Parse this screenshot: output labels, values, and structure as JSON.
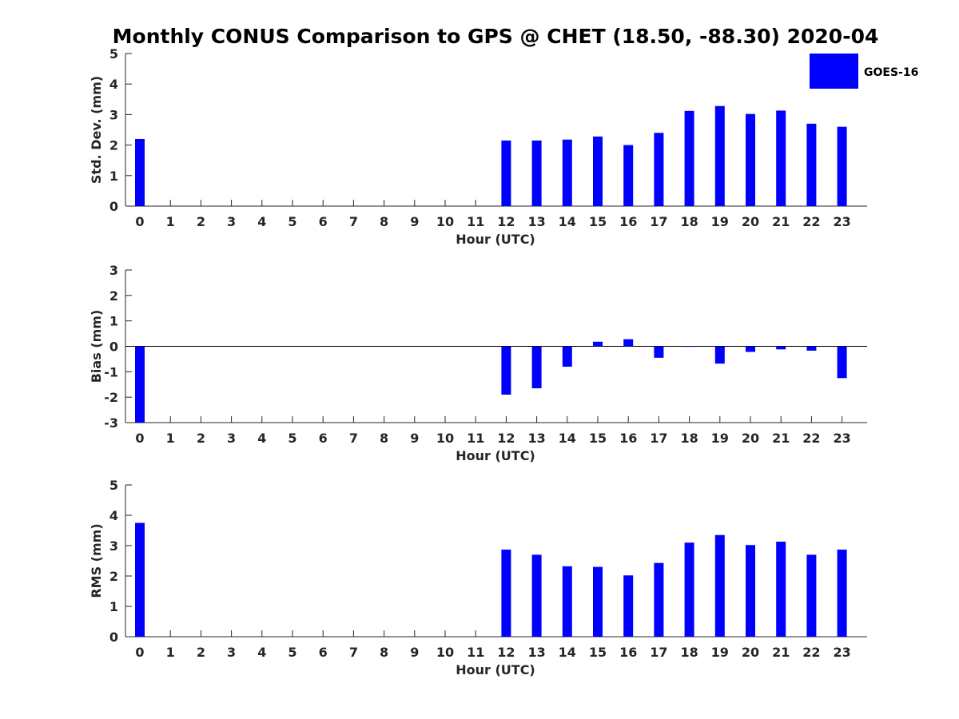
{
  "chart_data": {
    "title": "Monthly CONUS Comparison to GPS @ CHET (18.50, -88.30) 2020-04",
    "legend": {
      "entries": [
        "GOES-16"
      ],
      "placement": "top-right",
      "color": "#0000ff"
    },
    "bar_color": "#0000ff",
    "grid": false,
    "panels": [
      {
        "type": "bar",
        "ylabel": "Std. Dev. (mm)",
        "xlabel": "Hour (UTC)",
        "ylim": [
          0,
          5
        ],
        "yticks": [
          "0",
          "1",
          "2",
          "3",
          "4",
          "5"
        ],
        "categories": [
          "0",
          "1",
          "2",
          "3",
          "4",
          "5",
          "6",
          "7",
          "8",
          "9",
          "10",
          "11",
          "12",
          "13",
          "14",
          "15",
          "16",
          "17",
          "18",
          "19",
          "20",
          "21",
          "22",
          "23"
        ],
        "series": [
          {
            "name": "GOES-16",
            "values": [
              2.2,
              null,
              null,
              null,
              null,
              null,
              null,
              null,
              null,
              null,
              null,
              null,
              2.15,
              2.15,
              2.18,
              2.28,
              2.0,
              2.4,
              3.12,
              3.28,
              3.02,
              3.13,
              2.7,
              2.6
            ]
          }
        ]
      },
      {
        "type": "bar",
        "ylabel": "Bias (mm)",
        "xlabel": "Hour (UTC)",
        "ylim": [
          -3,
          3
        ],
        "yticks": [
          "-3",
          "-2",
          "-1",
          "0",
          "1",
          "2",
          "3"
        ],
        "zero_line": true,
        "categories": [
          "0",
          "1",
          "2",
          "3",
          "4",
          "5",
          "6",
          "7",
          "8",
          "9",
          "10",
          "11",
          "12",
          "13",
          "14",
          "15",
          "16",
          "17",
          "18",
          "19",
          "20",
          "21",
          "22",
          "23"
        ],
        "series": [
          {
            "name": "GOES-16",
            "values": [
              -3.0,
              null,
              null,
              null,
              null,
              null,
              null,
              null,
              null,
              null,
              null,
              null,
              -1.9,
              -1.65,
              -0.8,
              0.18,
              0.28,
              -0.45,
              -0.02,
              -0.68,
              -0.22,
              -0.12,
              -0.17,
              -1.25
            ]
          }
        ]
      },
      {
        "type": "bar",
        "ylabel": "RMS (mm)",
        "xlabel": "Hour (UTC)",
        "ylim": [
          0,
          5
        ],
        "yticks": [
          "0",
          "1",
          "2",
          "3",
          "4",
          "5"
        ],
        "categories": [
          "0",
          "1",
          "2",
          "3",
          "4",
          "5",
          "6",
          "7",
          "8",
          "9",
          "10",
          "11",
          "12",
          "13",
          "14",
          "15",
          "16",
          "17",
          "18",
          "19",
          "20",
          "21",
          "22",
          "23"
        ],
        "series": [
          {
            "name": "GOES-16",
            "values": [
              3.75,
              null,
              null,
              null,
              null,
              null,
              null,
              null,
              null,
              null,
              null,
              null,
              2.87,
              2.7,
              2.32,
              2.3,
              2.02,
              2.43,
              3.1,
              3.35,
              3.02,
              3.13,
              2.7,
              2.87
            ]
          }
        ]
      }
    ]
  }
}
